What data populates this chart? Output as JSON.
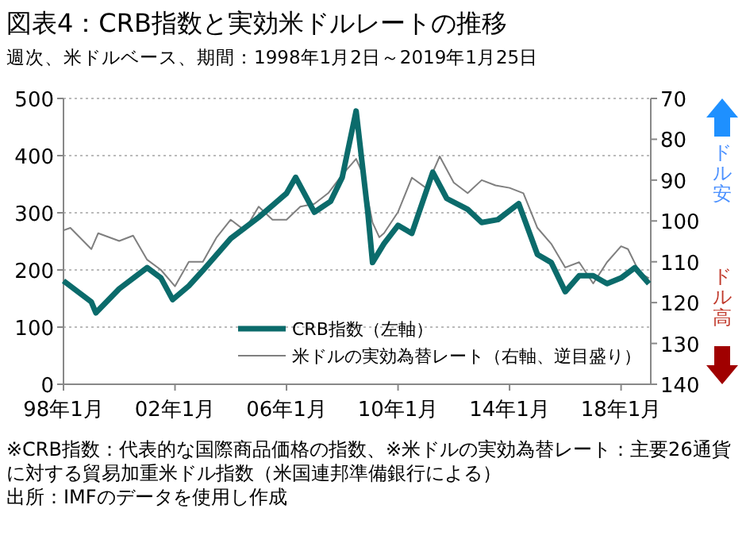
{
  "chart_data": {
    "type": "line",
    "title": "図表4：CRB指数と実効米ドルレートの推移",
    "subtitle": "週次、米ドルベース、期間：1998年1月2日～2019年1月25日",
    "xlim": [
      "1998-01",
      "2019-01-25"
    ],
    "xticks": [
      {
        "value": "1998-01",
        "label": "98年1月"
      },
      {
        "value": "2002-01",
        "label": "02年1月"
      },
      {
        "value": "2006-01",
        "label": "06年1月"
      },
      {
        "value": "2010-01",
        "label": "10年1月"
      },
      {
        "value": "2014-01",
        "label": "14年1月"
      },
      {
        "value": "2018-01",
        "label": "18年1月"
      }
    ],
    "ylim": [
      0,
      500
    ],
    "yticks": [
      0,
      100,
      200,
      300,
      400,
      500
    ],
    "y2lim": [
      140,
      70
    ],
    "y2ticks": [
      70,
      80,
      90,
      100,
      110,
      120,
      130,
      140
    ],
    "grid": "y",
    "legend": "bottom right",
    "series": [
      {
        "name": "CRB指数（左軸）",
        "color": "#0b6b6b",
        "x": [
          "1998-01",
          "1999-01",
          "1999-03",
          "2000-01",
          "2001-01",
          "2001-07",
          "2001-12",
          "2002-07",
          "2003-01",
          "2004-01",
          "2005-01",
          "2006-01",
          "2006-05",
          "2007-01",
          "2007-08",
          "2008-01",
          "2008-07",
          "2008-12",
          "2009-02",
          "2009-07",
          "2010-01",
          "2010-07",
          "2011-04",
          "2011-10",
          "2012-07",
          "2013-01",
          "2013-08",
          "2014-05",
          "2015-01",
          "2015-07",
          "2016-01",
          "2016-07",
          "2017-01",
          "2017-07",
          "2018-01",
          "2018-07",
          "2019-01"
        ],
        "values": [
          181,
          144,
          125,
          167,
          204,
          186,
          148,
          172,
          199,
          255,
          292,
          334,
          362,
          301,
          320,
          362,
          478,
          301,
          213,
          246,
          278,
          264,
          371,
          325,
          306,
          283,
          288,
          316,
          227,
          213,
          162,
          190,
          190,
          176,
          186,
          204,
          176
        ]
      },
      {
        "name": "米ドルの実効為替レート（右軸、逆目盛り）",
        "color": "#7f7f7f",
        "axis": "y2",
        "x": [
          "1998-01",
          "1998-04",
          "1999-01",
          "1999-04",
          "2000-01",
          "2000-07",
          "2001-01",
          "2001-07",
          "2002-01",
          "2002-07",
          "2003-01",
          "2003-07",
          "2004-01",
          "2004-07",
          "2005-01",
          "2005-07",
          "2006-01",
          "2006-07",
          "2007-01",
          "2007-07",
          "2008-01",
          "2008-07",
          "2008-10",
          "2009-02",
          "2009-05",
          "2009-07",
          "2010-01",
          "2010-07",
          "2011-01",
          "2011-07",
          "2012-01",
          "2012-07",
          "2013-01",
          "2013-07",
          "2014-01",
          "2014-07",
          "2015-01",
          "2015-07",
          "2016-01",
          "2016-07",
          "2017-01",
          "2017-07",
          "2018-01",
          "2018-04",
          "2018-09",
          "2019-01"
        ],
        "values": [
          102.3,
          101.7,
          106.9,
          103,
          104.9,
          103.6,
          109.5,
          112,
          116,
          110,
          110,
          104,
          99.7,
          102.3,
          96.5,
          99.7,
          99.7,
          96.5,
          95.8,
          93.2,
          88.7,
          84.8,
          88.7,
          100.4,
          104,
          103,
          97.8,
          89.4,
          91.9,
          84.2,
          90.6,
          93.2,
          90,
          91.3,
          91.9,
          93.2,
          101.7,
          105.6,
          111.4,
          110.1,
          115.3,
          110.1,
          106.2,
          106.9,
          112.7,
          114
        ]
      }
    ],
    "annotations": [
      "ドル安",
      "ドル高",
      "※CRB指数：代表的な国際商品価格の指数、※米ドルの実効為替レート：主要26通貨に対する貿易加重米ドル指数（米国連邦準備銀行による）",
      "出所：IMFのデータを使用し作成"
    ]
  }
}
